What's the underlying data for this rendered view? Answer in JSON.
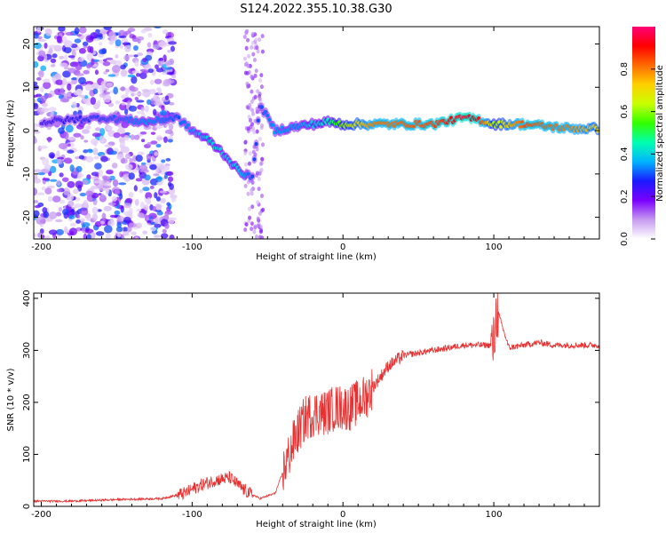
{
  "figure": {
    "title": "S124.2022.355.10.38.G30"
  },
  "chart_data": [
    {
      "type": "heatmap",
      "xlabel": "Height of straight line (km)",
      "ylabel": "Frequency (Hz)",
      "xlim": [
        -205,
        170
      ],
      "ylim": [
        -25,
        24
      ],
      "xticks": [
        -200,
        -100,
        0,
        100
      ],
      "yticks": [
        -20,
        -10,
        0,
        10,
        20
      ],
      "colorbar": {
        "label": "Normalized spectral amplitude",
        "range": [
          0,
          1
        ],
        "ticks": [
          0.0,
          0.2,
          0.4,
          0.6,
          0.8
        ],
        "colormap": [
          "#ffffff",
          "#c79bf0",
          "#7a00ff",
          "#1a1aff",
          "#00b4ff",
          "#00ffb0",
          "#33ff00",
          "#c8ff00",
          "#ffd000",
          "#ff6a00",
          "#ff0000",
          "#ff0077"
        ]
      },
      "ridge": [
        {
          "x": -200,
          "y": 2,
          "v": 0.25
        },
        {
          "x": -160,
          "y": 3,
          "v": 0.3
        },
        {
          "x": -130,
          "y": 2,
          "v": 0.35
        },
        {
          "x": -110,
          "y": 3,
          "v": 0.3
        },
        {
          "x": -100,
          "y": 0,
          "v": 0.35
        },
        {
          "x": -90,
          "y": -2,
          "v": 0.4
        },
        {
          "x": -80,
          "y": -5,
          "v": 0.4
        },
        {
          "x": -70,
          "y": -9,
          "v": 0.4
        },
        {
          "x": -60,
          "y": -11,
          "v": 0.3
        },
        {
          "x": -55,
          "y": 6,
          "v": 0.3
        },
        {
          "x": -45,
          "y": 0,
          "v": 0.35
        },
        {
          "x": -30,
          "y": 1,
          "v": 0.35
        },
        {
          "x": -10,
          "y": 2,
          "v": 0.45
        },
        {
          "x": 0,
          "y": 1.5,
          "v": 0.6
        },
        {
          "x": 20,
          "y": 1.5,
          "v": 0.8
        },
        {
          "x": 60,
          "y": 1.5,
          "v": 0.85
        },
        {
          "x": 80,
          "y": 3,
          "v": 0.95
        },
        {
          "x": 90,
          "y": 2.5,
          "v": 0.9
        },
        {
          "x": 100,
          "y": 1.5,
          "v": 0.6
        },
        {
          "x": 120,
          "y": 1.5,
          "v": 0.85
        },
        {
          "x": 150,
          "y": 0.5,
          "v": 0.8
        },
        {
          "x": 170,
          "y": 0.5,
          "v": 0.7
        }
      ]
    },
    {
      "type": "line",
      "xlabel": "Height of straight line (km)",
      "ylabel": "SNR (10 * v/v)",
      "xlim": [
        -205,
        170
      ],
      "ylim": [
        0,
        410
      ],
      "xticks": [
        -200,
        -100,
        0,
        100
      ],
      "yticks": [
        0,
        100,
        200,
        300,
        400
      ],
      "color": "#e83030",
      "series": [
        {
          "x": [
            -205,
            -180,
            -150,
            -120,
            -105,
            -95,
            -85,
            -75,
            -65,
            -55,
            -45,
            -38,
            -32,
            -25,
            -18,
            -12,
            -5,
            0,
            5,
            10,
            15,
            20,
            30,
            40,
            50,
            60,
            70,
            80,
            90,
            100,
            102,
            110,
            120,
            130,
            140,
            150,
            160,
            170
          ],
          "y": [
            10,
            10,
            13,
            15,
            25,
            40,
            50,
            55,
            30,
            15,
            25,
            80,
            130,
            170,
            180,
            180,
            190,
            190,
            190,
            200,
            210,
            230,
            270,
            290,
            295,
            300,
            305,
            310,
            310,
            310,
            380,
            305,
            310,
            315,
            310,
            310,
            310,
            310
          ]
        }
      ]
    }
  ]
}
